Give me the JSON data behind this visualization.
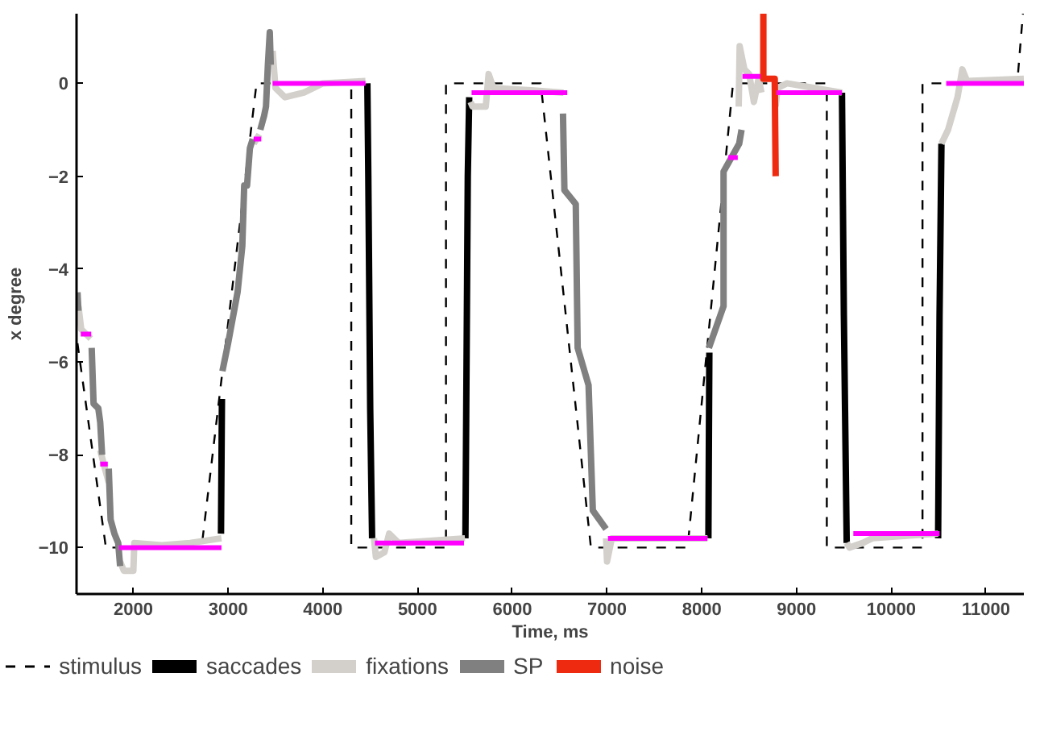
{
  "chart_data": {
    "type": "line",
    "xlabel": "Time, ms",
    "ylabel": "x degree",
    "xlim": [
      1400,
      11400
    ],
    "ylim": [
      -11,
      1.5
    ],
    "xticks": [
      2000,
      3000,
      4000,
      5000,
      6000,
      7000,
      8000,
      9000,
      10000,
      11000
    ],
    "yticks": [
      -10,
      -8,
      -6,
      -4,
      -2,
      0
    ],
    "grid": false,
    "legend": "bottom",
    "series": [
      {
        "name": "stimulus",
        "color": "#000000",
        "line_style": "dashed",
        "x": [
          1410,
          1710,
          2720,
          3300,
          4300,
          4300,
          5300,
          5300,
          6300,
          6830,
          7850,
          8330,
          9320,
          9320,
          10330,
          10330,
          11330,
          11390
        ],
        "values": [
          -5.6,
          -10,
          -10,
          0,
          0,
          -10,
          -10,
          0,
          0,
          -10,
          -10,
          0,
          0,
          -10,
          -10,
          0,
          0,
          1.5
        ]
      },
      {
        "name": "saccades",
        "color": "#000000",
        "x": [
          2925,
          2935,
          2940,
          4470,
          4480,
          4500,
          4520,
          4525,
          5505,
          5530,
          5545,
          5550,
          8070,
          8080,
          8085,
          9480,
          9500,
          9530,
          9535,
          10495,
          10510,
          10530
        ],
        "values": [
          -9.7,
          -6.8,
          null,
          0,
          -2,
          -7,
          -9.8,
          null,
          -9.8,
          -2,
          -0.3,
          null,
          -9.8,
          -5.8,
          null,
          -0.2,
          -5,
          -9.9,
          null,
          -9.8,
          -5,
          -1.3
        ]
      },
      {
        "name": "fixations",
        "color": "#d3d0cb",
        "x": [
          1420,
          1450,
          1550,
          1555,
          1650,
          1700,
          1740,
          1745,
          1860,
          1900,
          2000,
          2010,
          2300,
          2600,
          2930,
          2935,
          3270,
          3330,
          3335,
          3470,
          3500,
          3600,
          3800,
          4000,
          4450,
          4455,
          4540,
          4560,
          4650,
          4700,
          4800,
          5500,
          5505,
          5560,
          5580,
          5720,
          5750,
          5800,
          6200,
          6540,
          6545,
          6990,
          7000,
          7050,
          7500,
          8060,
          8065,
          8390,
          8400,
          8450,
          8500,
          8550,
          8600,
          8630,
          8635,
          8780,
          8800,
          8900,
          9480,
          9485,
          9530,
          9560,
          9700,
          9800,
          10495,
          10500,
          10530,
          10600,
          10700,
          10750,
          10800,
          11400
        ],
        "values": [
          -4.8,
          -5.3,
          -5.5,
          null,
          -7.9,
          -8.3,
          -8.6,
          null,
          -10.3,
          -10.5,
          -10.5,
          -9.9,
          -9.95,
          -9.9,
          -9.8,
          null,
          -1.3,
          -1.1,
          null,
          0.7,
          -0.1,
          -0.3,
          -0.2,
          0,
          0.05,
          null,
          -9.8,
          -10.2,
          -10.1,
          -9.7,
          -9.9,
          -9.8,
          null,
          -0.4,
          -0.5,
          -0.5,
          0.2,
          -0.1,
          -0.15,
          -0.2,
          null,
          -9.8,
          -10.3,
          -9.8,
          -9.8,
          -9.8,
          null,
          -0.5,
          0.8,
          0.3,
          0.2,
          -0.4,
          0.1,
          -0.2,
          null,
          -0.5,
          -0.1,
          0,
          -0.2,
          null,
          -9.9,
          -10.0,
          -9.9,
          -9.8,
          -9.7,
          null,
          -1.3,
          -1.0,
          -0.3,
          0.3,
          0.05,
          0.1
        ]
      },
      {
        "name": "SP",
        "color": "#808080",
        "x": [
          1410,
          1420,
          1425,
          1560,
          1580,
          1630,
          1650,
          1670,
          1675,
          1740,
          1760,
          1800,
          1840,
          1860,
          1865,
          2940,
          3000,
          3100,
          3150,
          3170,
          3200,
          3230,
          3260,
          3265,
          3340,
          3380,
          3400,
          3420,
          3440,
          3450,
          3455,
          6535,
          6550,
          6670,
          6690,
          6805,
          6850,
          6990,
          6995,
          8075,
          8230,
          8230,
          8395,
          8420
        ],
        "values": [
          -4.5,
          -4.9,
          null,
          -5.7,
          -6.9,
          -7.0,
          -7.3,
          -8.0,
          null,
          -8.3,
          -9.4,
          -9.7,
          -9.9,
          -10.4,
          null,
          -6.2,
          -5.6,
          -4.5,
          -3.5,
          -2.2,
          -2.2,
          -1.4,
          -1.2,
          null,
          -1.0,
          -0.7,
          -0.5,
          0.4,
          1.1,
          0.4,
          null,
          -0.65,
          -2.3,
          -2.6,
          -5.7,
          -6.5,
          -9.2,
          -9.6,
          null,
          -5.7,
          -4.8,
          -1.9,
          -1.3,
          -1.0
        ]
      },
      {
        "name": "noise",
        "color": "#ee2a10",
        "x": [
          8650,
          8650,
          8770,
          8780
        ],
        "values": [
          1.5,
          0.1,
          0.1,
          -2.0
        ]
      },
      {
        "color": "#ff00ff",
        "x": [
          1445,
          1555,
          1560,
          1650,
          1730,
          1735,
          1850,
          2930,
          2935,
          3270,
          3350,
          3355,
          3470,
          4450,
          4455,
          4550,
          5490,
          5495,
          5570,
          6580,
          6585,
          7010,
          8060,
          8065,
          8280,
          8380,
          8385,
          8430,
          8620,
          8625,
          8790,
          9480,
          9485,
          9600,
          10510,
          10515,
          10580,
          11400
        ],
        "values": [
          -5.4,
          -5.4,
          null,
          -8.2,
          -8.2,
          null,
          -10.0,
          -10.0,
          null,
          -1.2,
          -1.2,
          null,
          0,
          0,
          null,
          -9.9,
          -9.9,
          null,
          -0.2,
          -0.2,
          null,
          -9.8,
          -9.8,
          null,
          -1.6,
          -1.6,
          null,
          0.15,
          0.15,
          null,
          -0.2,
          -0.2,
          null,
          -9.7,
          -9.7,
          null,
          0,
          0
        ]
      }
    ]
  }
}
